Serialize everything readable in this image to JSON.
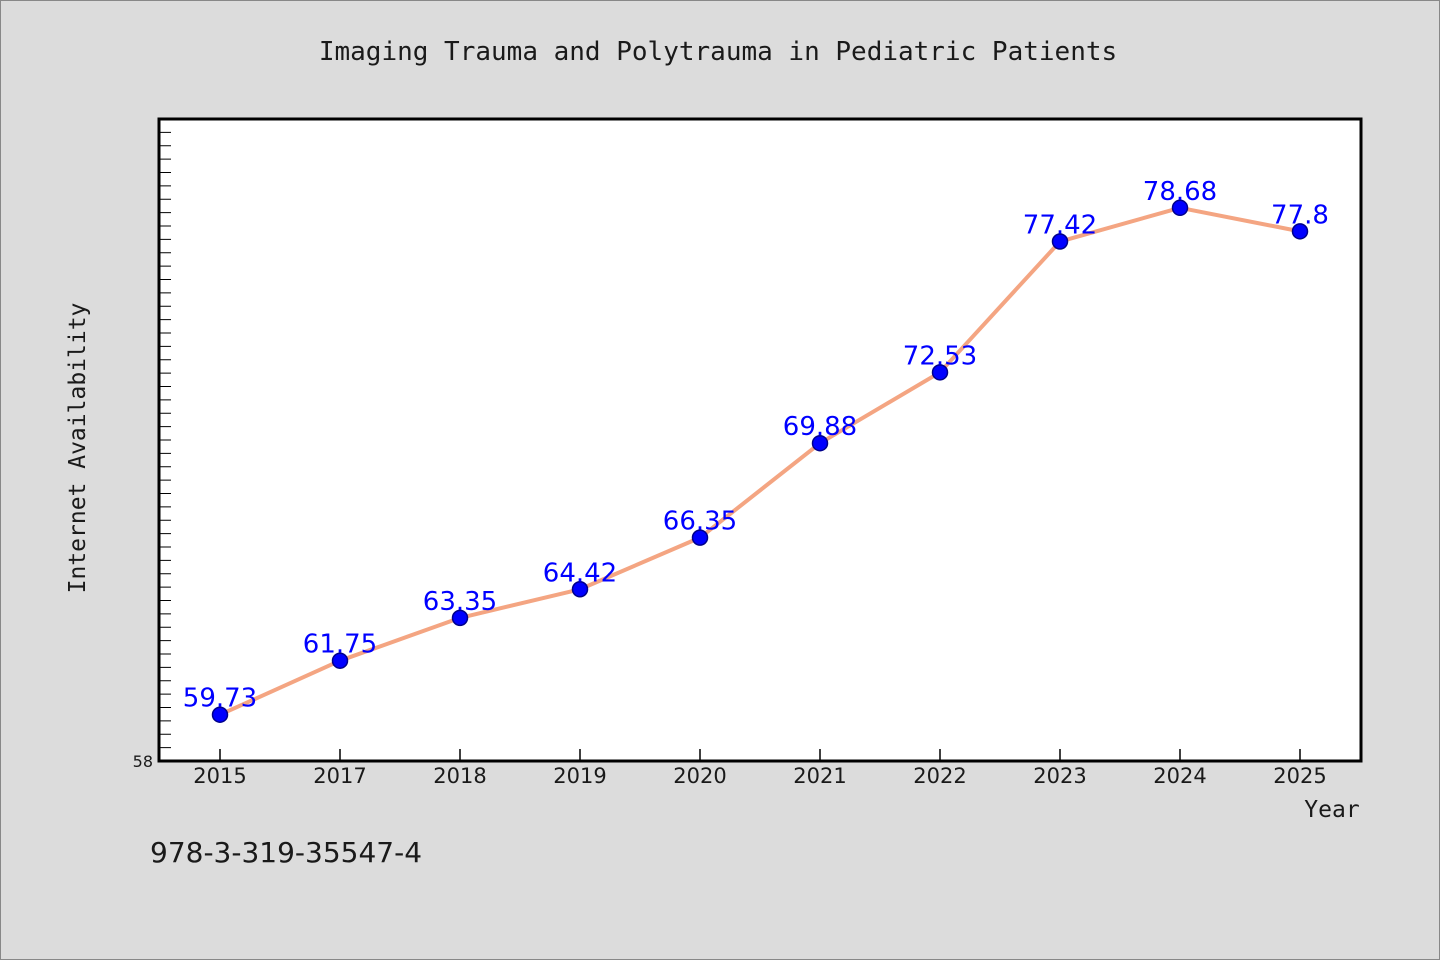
{
  "chart_data": {
    "type": "line",
    "title": "Imaging Trauma and Polytrauma in Pediatric Patients",
    "xlabel": "Year",
    "ylabel": "Internet Availability",
    "categories": [
      "2015",
      "2017",
      "2018",
      "2019",
      "2020",
      "2021",
      "2022",
      "2023",
      "2024",
      "2025"
    ],
    "series": [
      {
        "values": [
          59.73,
          61.75,
          63.35,
          64.42,
          66.35,
          69.88,
          72.53,
          77.42,
          78.68,
          77.8
        ],
        "value_labels": [
          "59.73",
          "61.75",
          "63.35",
          "64.42",
          "66.35",
          "69.88",
          "72.53",
          "77.42",
          "78.68",
          "77.8"
        ]
      }
    ],
    "ylim": [
      58,
      82
    ],
    "y_tick_labels": [
      "58"
    ],
    "y_minor_tick_step": 0.5,
    "grid": false,
    "legend": "none",
    "colors": {
      "line": "#f4a582",
      "marker": "#0000ff",
      "marker_edge": "#00008b",
      "data_label": "#0000ff",
      "plot_background": "#ffffff",
      "figure_background": "#dcdcdc"
    }
  },
  "footnote": "978-3-319-35547-4"
}
